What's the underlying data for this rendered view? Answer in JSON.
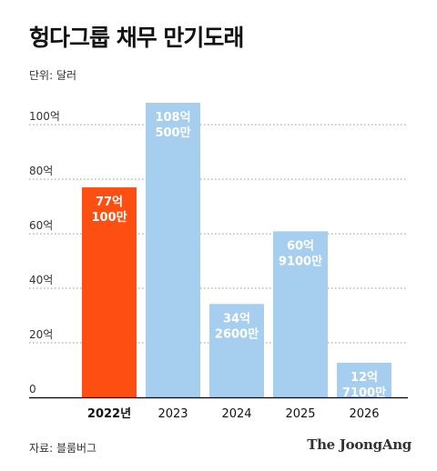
{
  "header": {
    "title": "헝다그룹 채무 만기도래",
    "unit": "단위: 달러"
  },
  "footer": {
    "source": "자료: 블룸버그",
    "brand": "The JoongAng"
  },
  "colors": {
    "highlight": "#FF4E12",
    "bar": "#A6CEEF",
    "axis": "#000000",
    "grid": "#999999",
    "bar_label": "#ffffff"
  },
  "chart_data": {
    "type": "bar",
    "categories": [
      "2022년",
      "2023",
      "2024",
      "2025",
      "2026"
    ],
    "values": [
      77.01,
      108.05,
      34.26,
      60.91,
      12.71
    ],
    "data_labels": [
      [
        "77억",
        "100만"
      ],
      [
        "108억",
        "500만"
      ],
      [
        "34억",
        "2600만"
      ],
      [
        "60억",
        "9100만"
      ],
      [
        "12억",
        "7100만"
      ]
    ],
    "highlight_index": 0,
    "yticks": [
      0,
      20,
      40,
      60,
      80,
      100
    ],
    "ytick_labels": [
      "0",
      "20억",
      "40억",
      "60억",
      "80억",
      "100억"
    ],
    "ylim": [
      0,
      108.05
    ],
    "grid": true,
    "xlabel": "",
    "ylabel": ""
  }
}
